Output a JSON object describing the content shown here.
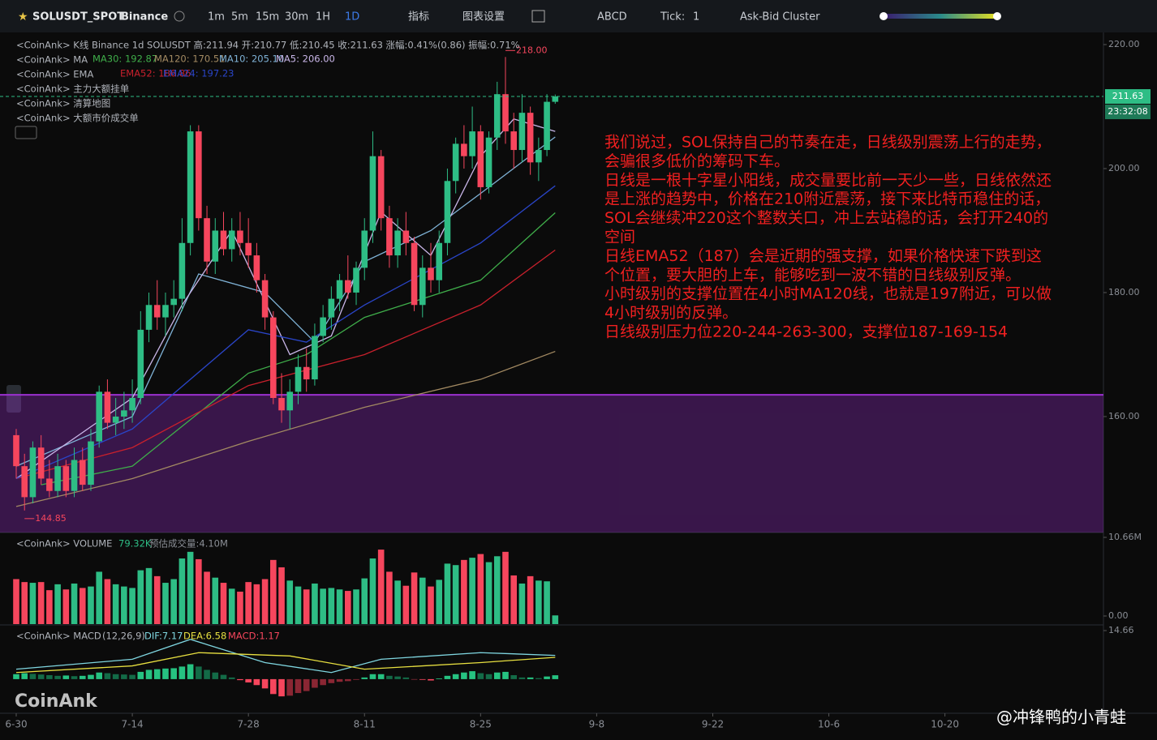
{
  "toolbar": {
    "symbol": "SOLUSDT_SPOT",
    "exchange": "Binance",
    "intervals": [
      "1m",
      "5m",
      "15m",
      "30m",
      "1H",
      "1D"
    ],
    "indicators": "指标",
    "settings": "图表设置",
    "abcd": "ABCD",
    "tick_label": "Tick:",
    "tick_value": "1",
    "cluster": "Ask-Bid Cluster"
  },
  "legend": {
    "kline": "<CoinAnk> K线  Binance 1d SOLUSDT 高:211.94 开:210.77 低:210.45 收:211.63 涨幅:0.41%(0.86) 振幅:0.71%",
    "ma": "<CoinAnk> MA",
    "ema": "<CoinAnk> EMA",
    "big_orders": "<CoinAnk> 主力大额挂单",
    "liq_map": "<CoinAnk> 清算地图",
    "big_trades": "<CoinAnk> 大额市价成交单"
  },
  "annotation": [
    "我们说过，SOL保持自己的节奏在走，日线级别震荡上行的走势，",
    "会骗很多低价的筹码下车。",
    "日线是一根十字星小阳线，成交量要比前一天少一些，日线依然还",
    "是上涨的趋势中，价格在210附近震荡，接下来比特币稳住的话，",
    "SOL会继续冲220这个整数关口，冲上去站稳的话，会打开240的",
    "空间",
    "日线EMA52（187）会是近期的强支撑，如果价格快速下跌到这",
    "个位置，要大胆的上车，能够吃到一波不错的日线级别反弹。",
    "小时级别的支撑位置在4小时MA120线，也就是197附近，可以做",
    "4小时级别的反弹。",
    "日线级别压力位220-244-263-300，支撑位187-169-154"
  ],
  "watermark": "CoinAnk",
  "author": "@冲锋鸭的小青蛙",
  "chart_data": {
    "type": "candlestick",
    "ylim": [
      141.3,
      221.7
    ],
    "yticks": [
      {
        "value": 160,
        "label": "160.00"
      },
      {
        "value": 180,
        "label": "180.00"
      },
      {
        "value": 200,
        "label": "200.00"
      },
      {
        "value": 220,
        "label": "220.00"
      }
    ],
    "xticks": [
      {
        "value": 0,
        "label": "6-30"
      },
      {
        "value": 14,
        "label": "7-14"
      },
      {
        "value": 28,
        "label": "7-28"
      },
      {
        "value": 42,
        "label": "8-11"
      },
      {
        "value": 56,
        "label": "8-25"
      },
      {
        "value": 70,
        "label": "9-8"
      },
      {
        "value": 84,
        "label": "9-22"
      },
      {
        "value": 98,
        "label": "10-6"
      },
      {
        "value": 112,
        "label": "10-20"
      }
    ],
    "up_color": "#2ebd85",
    "down_color": "#f6465d",
    "zone": {
      "from": 141.3,
      "to": 163.5,
      "color": "#9b30d0"
    },
    "last_price": 211.63,
    "last_price_label": "211.63",
    "countdown": "23:32:08",
    "high_marker": {
      "index": 59,
      "value": 218,
      "label": "218.00"
    },
    "low_marker": {
      "index": 1,
      "value": 144.85,
      "label": "144.85"
    },
    "ohlc": [
      [
        157,
        158,
        150,
        152
      ],
      [
        152,
        154,
        144.85,
        147
      ],
      [
        147,
        156,
        146,
        155
      ],
      [
        155,
        157,
        149,
        150
      ],
      [
        150,
        153,
        147,
        148
      ],
      [
        148,
        154,
        147,
        152
      ],
      [
        152,
        153,
        147,
        148
      ],
      [
        148,
        155,
        147,
        153
      ],
      [
        153,
        155,
        148,
        149
      ],
      [
        149,
        158,
        148,
        156
      ],
      [
        156,
        165,
        155,
        164
      ],
      [
        164,
        166,
        158,
        159
      ],
      [
        159,
        163,
        157,
        160
      ],
      [
        160,
        164,
        158,
        161
      ],
      [
        161,
        166,
        159,
        163
      ],
      [
        163,
        177,
        162,
        174
      ],
      [
        174,
        180,
        172,
        178
      ],
      [
        178,
        182,
        174,
        176
      ],
      [
        176,
        180,
        173,
        178
      ],
      [
        178,
        182,
        176,
        179
      ],
      [
        179,
        192,
        177,
        188
      ],
      [
        188,
        207,
        186,
        206
      ],
      [
        206,
        207,
        190,
        192
      ],
      [
        192,
        194,
        183,
        185
      ],
      [
        185,
        192,
        183,
        190
      ],
      [
        190,
        193,
        186,
        187
      ],
      [
        187,
        192,
        185,
        190
      ],
      [
        190,
        193,
        186,
        188
      ],
      [
        188,
        192,
        184,
        186
      ],
      [
        186,
        188,
        180,
        182
      ],
      [
        182,
        183,
        174,
        176
      ],
      [
        176,
        177,
        162,
        163
      ],
      [
        163,
        167,
        159,
        161
      ],
      [
        161,
        166,
        158,
        164
      ],
      [
        164,
        170,
        162,
        168
      ],
      [
        168,
        171,
        164,
        166
      ],
      [
        166,
        175,
        165,
        173
      ],
      [
        173,
        178,
        172,
        176
      ],
      [
        176,
        181,
        174,
        179
      ],
      [
        179,
        183,
        177,
        182
      ],
      [
        182,
        186,
        179,
        180
      ],
      [
        180,
        185,
        178,
        184
      ],
      [
        184,
        192,
        182,
        190
      ],
      [
        190,
        206,
        188,
        202
      ],
      [
        202,
        203,
        190,
        192
      ],
      [
        192,
        194,
        184,
        186
      ],
      [
        186,
        192,
        184,
        190
      ],
      [
        190,
        193,
        186,
        188
      ],
      [
        188,
        189,
        177,
        178
      ],
      [
        178,
        186,
        176,
        184
      ],
      [
        184,
        188,
        180,
        182
      ],
      [
        182,
        190,
        180,
        188
      ],
      [
        188,
        200,
        186,
        198
      ],
      [
        198,
        205,
        196,
        204
      ],
      [
        204,
        207,
        200,
        202
      ],
      [
        202,
        210,
        200,
        206
      ],
      [
        206,
        207,
        195,
        197
      ],
      [
        197,
        206,
        196,
        205
      ],
      [
        205,
        214,
        203,
        212
      ],
      [
        212,
        218,
        204,
        206
      ],
      [
        206,
        209,
        200,
        203
      ],
      [
        203,
        212,
        201,
        209
      ],
      [
        209,
        210,
        199,
        201
      ],
      [
        201,
        205,
        198,
        203
      ],
      [
        203,
        212,
        202,
        210.77
      ],
      [
        210.77,
        211.94,
        210.45,
        211.63
      ]
    ],
    "lines": [
      {
        "name": "MA30: 192.87",
        "color": "#3fae4a",
        "x": [
          3,
          14,
          28,
          35,
          42,
          56,
          65
        ],
        "values": [
          149,
          152,
          167,
          170,
          176,
          182,
          192.87
        ]
      },
      {
        "name": "MA120: 170.51",
        "color": "#a38a62",
        "x": [
          0,
          14,
          28,
          42,
          56,
          65
        ],
        "values": [
          145.5,
          150,
          156,
          161.5,
          166,
          170.51
        ]
      },
      {
        "name": "MA10: 205.10",
        "color": "#7fb2d6",
        "x": [
          0,
          14,
          22,
          30,
          36,
          42,
          50,
          56,
          65
        ],
        "values": [
          152,
          160,
          183,
          180,
          172,
          185,
          190,
          196,
          205.1
        ]
      },
      {
        "name": "MA5: 206.00",
        "color": "#c9b6e8",
        "x": [
          0,
          14,
          20,
          26,
          33,
          38,
          44,
          50,
          56,
          60,
          65
        ],
        "values": [
          150,
          163,
          178,
          190,
          170,
          173,
          193,
          186,
          202,
          208,
          206
        ]
      },
      {
        "name": "EMA52: 186.86",
        "color": "#c8202c",
        "x": [
          0,
          14,
          28,
          42,
          56,
          65
        ],
        "values": [
          150,
          155,
          165,
          170,
          178,
          186.86
        ]
      },
      {
        "name": "EMA24: 197.23",
        "color": "#2a45c8",
        "x": [
          0,
          14,
          28,
          35,
          42,
          56,
          65
        ],
        "values": [
          150,
          158,
          174,
          172,
          178,
          188,
          197.23
        ]
      }
    ],
    "volume": {
      "title": "<CoinAnk> VOLUME",
      "value_label": "79.32K",
      "estimate": "预估成交量:4.10M",
      "ylim": [
        0,
        10.66
      ],
      "yticks": [
        {
          "value": 10.66,
          "label": "10.66M"
        },
        {
          "value": 0,
          "label": "0.00"
        }
      ],
      "values": [
        5.0,
        4.6,
        4.5,
        4.6,
        3.5,
        4.3,
        3.6,
        4.4,
        3.8,
        4.0,
        6.0,
        5.0,
        4.3,
        4.0,
        3.8,
        6.2,
        6.5,
        5.4,
        4.5,
        5.0,
        7.8,
        8.7,
        7.7,
        6.0,
        5.2,
        4.5,
        3.7,
        3.3,
        4.6,
        4.3,
        5.0,
        7.6,
        6.6,
        4.8,
        4.0,
        3.6,
        4.4,
        3.7,
        3.8,
        3.6,
        3.4,
        3.6,
        5.1,
        7.8,
        9.0,
        6.0,
        4.8,
        4.1,
        5.9,
        5.2,
        4.0,
        4.9,
        7.1,
        6.9,
        7.6,
        7.9,
        8.4,
        7.3,
        8.1,
        8.7,
        5.5,
        4.4,
        5.4,
        4.8,
        4.7,
        0.07932
      ]
    },
    "macd": {
      "title": "<CoinAnk> MACD",
      "params": "(12,26,9)",
      "ylim": [
        -10.3,
        14.66
      ],
      "yticks": [
        {
          "value": 14.66,
          "label": "14.66"
        }
      ],
      "hist": [
        1.5,
        1.8,
        1.6,
        1.4,
        1.2,
        1.0,
        1.1,
        0.9,
        1.0,
        1.3,
        2.0,
        1.8,
        1.5,
        1.4,
        1.3,
        2.2,
        2.8,
        3.0,
        3.2,
        3.3,
        3.8,
        4.5,
        3.8,
        2.8,
        2.0,
        1.3,
        0.5,
        -0.3,
        -1.0,
        -1.8,
        -2.8,
        -4.5,
        -5.2,
        -5.0,
        -4.2,
        -3.6,
        -2.6,
        -1.8,
        -1.2,
        -0.8,
        -0.6,
        -0.2,
        0.5,
        1.5,
        1.5,
        1.0,
        0.8,
        0.5,
        -0.1,
        -0.2,
        -0.4,
        0.2,
        1.0,
        1.5,
        2.0,
        2.4,
        1.8,
        1.5,
        2.0,
        2.2,
        1.2,
        0.5,
        0.5,
        0.3,
        0.8,
        1.17
      ],
      "lines": [
        {
          "name": "DIF:7.17",
          "color": "#7fd6e0",
          "x": [
            0,
            14,
            21,
            30,
            38,
            44,
            56,
            65
          ],
          "values": [
            3,
            6,
            12,
            5,
            2,
            6,
            8,
            7.17
          ]
        },
        {
          "name": "DEA:6.58",
          "color": "#e8e040",
          "x": [
            0,
            14,
            22,
            33,
            42,
            56,
            65
          ],
          "values": [
            2,
            4,
            8,
            7,
            3,
            5,
            6.58
          ]
        }
      ],
      "macd_label": "MACD:1.17"
    }
  }
}
